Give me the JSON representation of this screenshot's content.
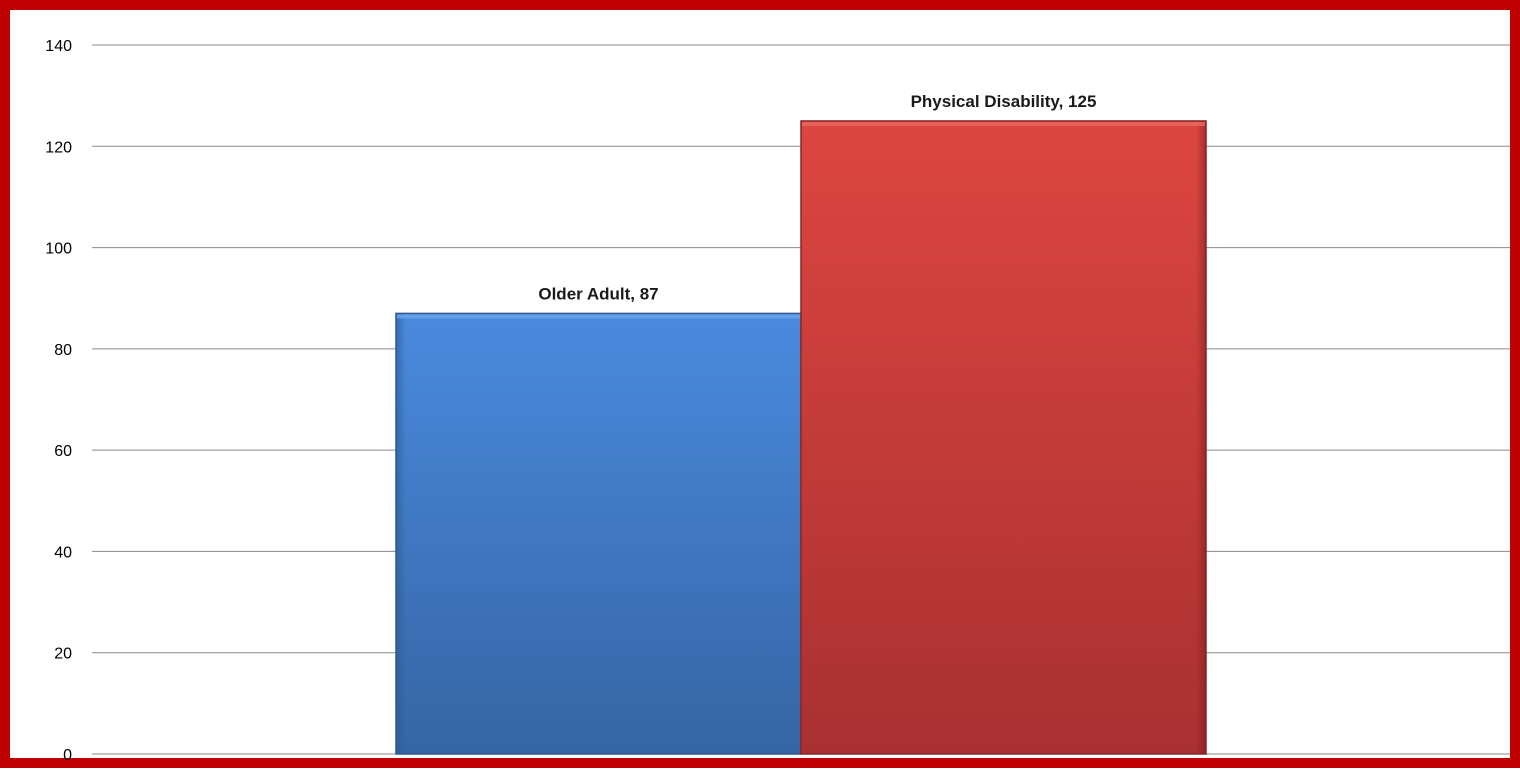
{
  "chart_data": {
    "type": "bar",
    "categories": [
      "Older Adult",
      "Physical Disability"
    ],
    "values": [
      87,
      125
    ],
    "data_labels": [
      "Older Adult, 87",
      "Physical Disability, 125"
    ],
    "colors": [
      "#4a86d6",
      "#d9423e"
    ],
    "frame_color": "#c00000",
    "title": "",
    "xlabel": "",
    "ylabel": "",
    "ylim": [
      0,
      140
    ],
    "yticks": [
      0,
      20,
      40,
      60,
      80,
      100,
      120,
      140
    ],
    "ytick_labels": [
      "0",
      "20",
      "40",
      "60",
      "80",
      "100",
      "120",
      "140"
    ],
    "grid": true,
    "legend": "none"
  }
}
